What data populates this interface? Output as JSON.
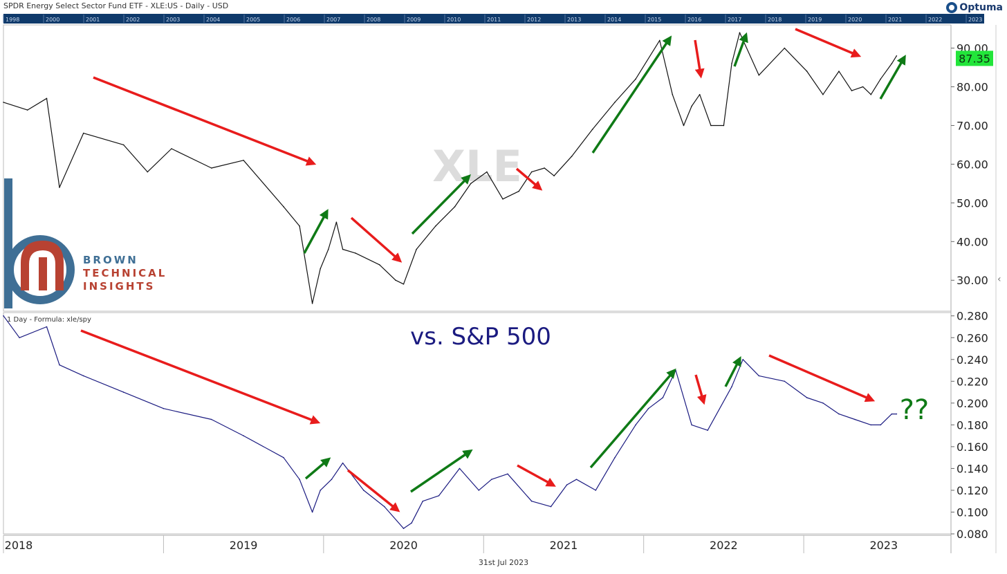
{
  "header": {
    "title": "SPDR Energy Select Sector Fund ETF - XLE:US - Daily - USD",
    "brand": "Optuma"
  },
  "navigator_years": [
    "1998",
    "2000",
    "2001",
    "2002",
    "2003",
    "2004",
    "2005",
    "2006",
    "2007",
    "2008",
    "2009",
    "2010",
    "2011",
    "2012",
    "2013",
    "2014",
    "2015",
    "2016",
    "2017",
    "2018",
    "2019",
    "2020",
    "2021",
    "2022",
    "2023"
  ],
  "watermark": "XLE",
  "logo": {
    "line1": "BROWN",
    "line2": "TECHNICAL",
    "line3": "INSIGHTS",
    "colors": {
      "blue": "#3f6f95",
      "red": "#b84232"
    }
  },
  "footer_date": "31st Jul 2023",
  "x_axis_labels": [
    "2018",
    "2019",
    "2020",
    "2021",
    "2022",
    "2023"
  ],
  "colors": {
    "price": "#111111",
    "ratio": "#1a1a80",
    "red_arrow": "#e81c1c",
    "green_arrow": "#0f7a16",
    "last_value_bg": "#22e53a",
    "grid": "#e6e6e6"
  },
  "chart_data": [
    {
      "type": "line",
      "title": "XLE",
      "ylim": [
        22,
        96
      ],
      "yticks": [
        "90.00",
        "80.00",
        "70.00",
        "60.00",
        "50.00",
        "40.00",
        "30.00"
      ],
      "last_value": "87.35",
      "x": [
        2018.0,
        2018.15,
        2018.27,
        2018.35,
        2018.5,
        2018.75,
        2018.9,
        2019.05,
        2019.3,
        2019.5,
        2019.75,
        2019.85,
        2019.93,
        2019.98,
        2020.03,
        2020.08,
        2020.12,
        2020.2,
        2020.35,
        2020.45,
        2020.5,
        2020.58,
        2020.7,
        2020.82,
        2020.92,
        2021.02,
        2021.12,
        2021.22,
        2021.3,
        2021.38,
        2021.44,
        2021.55,
        2021.68,
        2021.82,
        2021.95,
        2022.1,
        2022.18,
        2022.25,
        2022.3,
        2022.35,
        2022.42,
        2022.5,
        2022.55,
        2022.6,
        2022.72,
        2022.88,
        2023.02,
        2023.12,
        2023.22,
        2023.3,
        2023.37,
        2023.42,
        2023.48,
        2023.55,
        2023.58
      ],
      "values": [
        76,
        74,
        77,
        54,
        68,
        65,
        58,
        64,
        59,
        61,
        49,
        44,
        24,
        33,
        38,
        45,
        38,
        37,
        34,
        30,
        29,
        38,
        44,
        49,
        55,
        58,
        51,
        53,
        58,
        59,
        57,
        62,
        69,
        76,
        82,
        92,
        78,
        70,
        75,
        78,
        70,
        70,
        86,
        94,
        83,
        90,
        84,
        78,
        84,
        79,
        80,
        78,
        82,
        86,
        88
      ]
    },
    {
      "type": "line",
      "title": "vs. S&P 500",
      "ylim": [
        0.08,
        0.283
      ],
      "yticks": [
        "0.280",
        "0.260",
        "0.240",
        "0.220",
        "0.200",
        "0.180",
        "0.160",
        "0.140",
        "0.120",
        "0.100",
        "0.080"
      ],
      "axis_header": "1 Day - Formula:  xle/spy",
      "annotation": "??",
      "x": [
        2018.0,
        2018.1,
        2018.27,
        2018.35,
        2018.5,
        2018.75,
        2019.0,
        2019.3,
        2019.5,
        2019.75,
        2019.85,
        2019.93,
        2019.98,
        2020.05,
        2020.12,
        2020.25,
        2020.38,
        2020.5,
        2020.55,
        2020.62,
        2020.72,
        2020.85,
        2020.97,
        2021.05,
        2021.15,
        2021.3,
        2021.42,
        2021.52,
        2021.58,
        2021.7,
        2021.82,
        2021.95,
        2022.03,
        2022.12,
        2022.2,
        2022.3,
        2022.4,
        2022.55,
        2022.62,
        2022.72,
        2022.88,
        2023.02,
        2023.12,
        2023.22,
        2023.32,
        2023.42,
        2023.48,
        2023.55,
        2023.58
      ],
      "values": [
        0.28,
        0.26,
        0.27,
        0.235,
        0.225,
        0.21,
        0.195,
        0.185,
        0.17,
        0.15,
        0.13,
        0.1,
        0.12,
        0.13,
        0.145,
        0.12,
        0.105,
        0.085,
        0.09,
        0.11,
        0.115,
        0.14,
        0.12,
        0.13,
        0.135,
        0.11,
        0.105,
        0.125,
        0.13,
        0.12,
        0.15,
        0.18,
        0.195,
        0.205,
        0.23,
        0.18,
        0.175,
        0.215,
        0.24,
        0.225,
        0.22,
        0.205,
        0.2,
        0.19,
        0.185,
        0.18,
        0.18,
        0.19,
        0.19
      ]
    }
  ]
}
